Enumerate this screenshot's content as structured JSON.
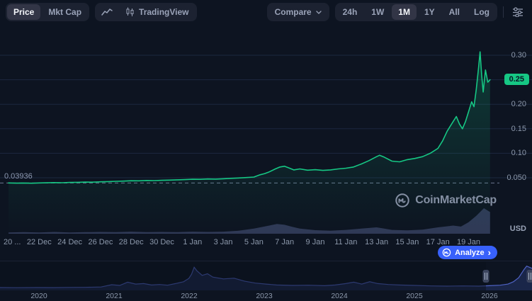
{
  "colors": {
    "green": "#16c784",
    "blue": "#3861fb",
    "background": "#0d1421",
    "panel": "#1c2231",
    "panel_active": "#323546",
    "text_muted": "#8c98ab",
    "grid": "#1c2740",
    "volume": "#333d5c",
    "nav_line": "#4f63c5",
    "nav_fill": "rgba(62,85,178,0.28)",
    "dashed_line": "#6b7691"
  },
  "toolbar": {
    "toggle": {
      "price": "Price",
      "mktcap": "Mkt Cap"
    },
    "tradingview_label": "TradingView",
    "compare_label": "Compare",
    "ranges": [
      "24h",
      "1W",
      "1M",
      "1Y",
      "All",
      "Log"
    ],
    "selected_range": "1M"
  },
  "main_chart": {
    "start_price_label": "0.03936",
    "current_price_badge": "0.25",
    "y_ticks": [
      {
        "label": "0.30",
        "value": 0.3
      },
      {
        "label": "0.20",
        "value": 0.2
      },
      {
        "label": "0.15",
        "value": 0.15
      },
      {
        "label": "0.10",
        "value": 0.1
      },
      {
        "label": "0.050",
        "value": 0.05
      }
    ],
    "y_unit": "USD",
    "x_ticks": [
      "20 ...",
      "22 Dec",
      "24 Dec",
      "26 Dec",
      "28 Dec",
      "30 Dec",
      "1 Jan",
      "3 Jan",
      "5 Jan",
      "7 Jan",
      "9 Jan",
      "11 Jan",
      "13 Jan",
      "15 Jan",
      "17 Jan",
      "19 Jan"
    ],
    "watermark": "CoinMarketCap",
    "analyze_label": "Analyze",
    "analyze_chevron": "›"
  },
  "navigator": {
    "year_ticks": [
      "2020",
      "2021",
      "2022",
      "2023",
      "2024",
      "2025",
      "2026"
    ]
  },
  "chart_data": {
    "type": "line",
    "title": "Cryptocurrency price, 1M range (20 Dec - 20 Jan), USD",
    "main": {
      "ylim": [
        0.03,
        0.32
      ],
      "grid_values": [
        0.3,
        0.25,
        0.2,
        0.15,
        0.1,
        0.05
      ],
      "start_price": 0.03936,
      "current_price": 0.25,
      "x_unit": "days since 20 Dec",
      "price_usd": [
        [
          0,
          0.0394
        ],
        [
          0.5,
          0.039
        ],
        [
          1,
          0.0393
        ],
        [
          1.5,
          0.0389
        ],
        [
          2,
          0.0395
        ],
        [
          2.5,
          0.0398
        ],
        [
          3,
          0.0402
        ],
        [
          3.5,
          0.0399
        ],
        [
          4,
          0.0405
        ],
        [
          4.5,
          0.0408
        ],
        [
          5,
          0.0412
        ],
        [
          5.5,
          0.041
        ],
        [
          6,
          0.0418
        ],
        [
          6.5,
          0.0422
        ],
        [
          7,
          0.0428
        ],
        [
          7.5,
          0.0432
        ],
        [
          8,
          0.044
        ],
        [
          8.5,
          0.0438
        ],
        [
          9,
          0.0445
        ],
        [
          9.5,
          0.0442
        ],
        [
          10,
          0.0448
        ],
        [
          10.5,
          0.0452
        ],
        [
          11,
          0.0458
        ],
        [
          11.5,
          0.0462
        ],
        [
          12,
          0.047
        ],
        [
          12.5,
          0.0468
        ],
        [
          13,
          0.0475
        ],
        [
          13.5,
          0.0472
        ],
        [
          14,
          0.048
        ],
        [
          14.5,
          0.0488
        ],
        [
          15,
          0.0495
        ],
        [
          15.5,
          0.0505
        ],
        [
          16,
          0.0515
        ],
        [
          16.4,
          0.056
        ],
        [
          16.7,
          0.0585
        ],
        [
          17,
          0.062
        ],
        [
          17.4,
          0.068
        ],
        [
          17.7,
          0.072
        ],
        [
          18,
          0.0735
        ],
        [
          18.3,
          0.07
        ],
        [
          18.6,
          0.066
        ],
        [
          19,
          0.068
        ],
        [
          19.5,
          0.0655
        ],
        [
          20,
          0.0665
        ],
        [
          20.5,
          0.065
        ],
        [
          21,
          0.066
        ],
        [
          21.5,
          0.068
        ],
        [
          22,
          0.0695
        ],
        [
          22.5,
          0.072
        ],
        [
          23,
          0.078
        ],
        [
          23.5,
          0.085
        ],
        [
          24,
          0.093
        ],
        [
          24.2,
          0.096
        ],
        [
          24.5,
          0.092
        ],
        [
          25,
          0.084
        ],
        [
          25.5,
          0.0825
        ],
        [
          26,
          0.087
        ],
        [
          26.5,
          0.0895
        ],
        [
          27,
          0.093
        ],
        [
          27.5,
          0.1
        ],
        [
          28,
          0.11
        ],
        [
          28.3,
          0.125
        ],
        [
          28.6,
          0.145
        ],
        [
          29,
          0.165
        ],
        [
          29.2,
          0.175
        ],
        [
          29.4,
          0.16
        ],
        [
          29.6,
          0.15
        ],
        [
          29.8,
          0.165
        ],
        [
          30,
          0.185
        ],
        [
          30.2,
          0.205
        ],
        [
          30.35,
          0.195
        ],
        [
          30.5,
          0.23
        ],
        [
          30.65,
          0.275
        ],
        [
          30.75,
          0.307
        ],
        [
          30.85,
          0.26
        ],
        [
          30.95,
          0.225
        ],
        [
          31.1,
          0.27
        ],
        [
          31.25,
          0.245
        ],
        [
          31.4,
          0.25
        ]
      ],
      "volume_relative": [
        [
          0,
          0.05
        ],
        [
          1,
          0.06
        ],
        [
          2,
          0.05
        ],
        [
          3,
          0.07
        ],
        [
          4,
          0.05
        ],
        [
          5,
          0.06
        ],
        [
          6,
          0.07
        ],
        [
          7,
          0.06
        ],
        [
          8,
          0.08
        ],
        [
          9,
          0.06
        ],
        [
          10,
          0.07
        ],
        [
          11,
          0.06
        ],
        [
          12,
          0.08
        ],
        [
          13,
          0.07
        ],
        [
          14,
          0.08
        ],
        [
          15,
          0.12
        ],
        [
          16,
          0.2
        ],
        [
          17,
          0.32
        ],
        [
          17.5,
          0.38
        ],
        [
          18,
          0.35
        ],
        [
          18.5,
          0.27
        ],
        [
          19,
          0.2
        ],
        [
          20,
          0.14
        ],
        [
          21,
          0.12
        ],
        [
          22,
          0.15
        ],
        [
          23,
          0.2
        ],
        [
          24,
          0.25
        ],
        [
          24.5,
          0.2
        ],
        [
          25,
          0.15
        ],
        [
          26,
          0.13
        ],
        [
          27,
          0.16
        ],
        [
          28,
          0.25
        ],
        [
          29,
          0.32
        ],
        [
          29.5,
          0.28
        ],
        [
          30,
          0.45
        ],
        [
          30.5,
          0.7
        ],
        [
          31,
          1.0
        ],
        [
          31.4,
          0.85
        ]
      ]
    },
    "navigator": {
      "x_unit": "fraction of width, years 2020-2026",
      "points": [
        [
          0,
          0.03
        ],
        [
          0.03,
          0.025
        ],
        [
          0.07,
          0.03
        ],
        [
          0.1,
          0.028
        ],
        [
          0.13,
          0.035
        ],
        [
          0.16,
          0.04
        ],
        [
          0.19,
          0.055
        ],
        [
          0.21,
          0.15
        ],
        [
          0.225,
          0.12
        ],
        [
          0.24,
          0.26
        ],
        [
          0.255,
          0.18
        ],
        [
          0.27,
          0.2
        ],
        [
          0.285,
          0.14
        ],
        [
          0.3,
          0.16
        ],
        [
          0.315,
          0.13
        ],
        [
          0.33,
          0.2
        ],
        [
          0.345,
          0.28
        ],
        [
          0.355,
          0.42
        ],
        [
          0.36,
          0.6
        ],
        [
          0.365,
          0.9
        ],
        [
          0.37,
          0.75
        ],
        [
          0.38,
          0.55
        ],
        [
          0.39,
          0.62
        ],
        [
          0.4,
          0.48
        ],
        [
          0.42,
          0.4
        ],
        [
          0.44,
          0.43
        ],
        [
          0.46,
          0.3
        ],
        [
          0.48,
          0.22
        ],
        [
          0.5,
          0.18
        ],
        [
          0.52,
          0.14
        ],
        [
          0.55,
          0.12
        ],
        [
          0.58,
          0.13
        ],
        [
          0.61,
          0.11
        ],
        [
          0.63,
          0.14
        ],
        [
          0.65,
          0.2
        ],
        [
          0.665,
          0.26
        ],
        [
          0.68,
          0.18
        ],
        [
          0.695,
          0.28
        ],
        [
          0.71,
          0.2
        ],
        [
          0.73,
          0.16
        ],
        [
          0.75,
          0.14
        ],
        [
          0.78,
          0.12
        ],
        [
          0.81,
          0.1
        ],
        [
          0.84,
          0.09
        ],
        [
          0.87,
          0.1
        ],
        [
          0.9,
          0.09
        ],
        [
          0.92,
          0.11
        ],
        [
          0.94,
          0.13
        ],
        [
          0.955,
          0.18
        ],
        [
          0.965,
          0.28
        ],
        [
          0.975,
          0.45
        ],
        [
          0.985,
          0.8
        ],
        [
          0.99,
          0.95
        ],
        [
          1,
          0.85
        ]
      ]
    }
  }
}
